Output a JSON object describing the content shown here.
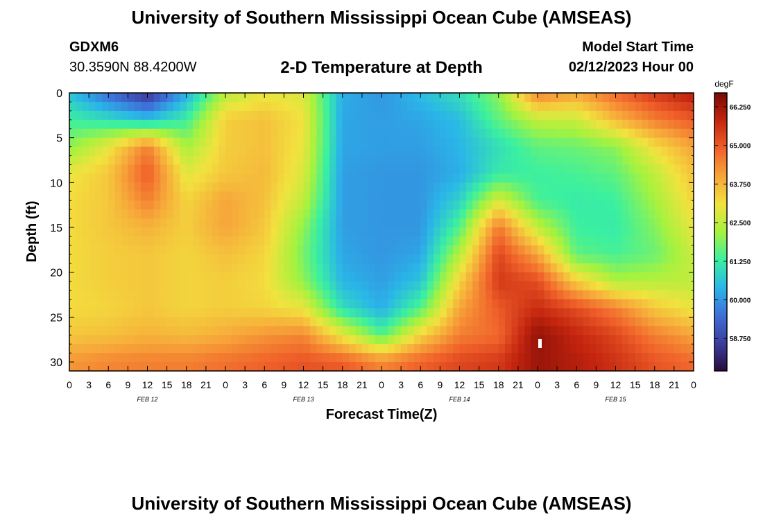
{
  "header": {
    "title": "University of Southern Mississippi Ocean Cube (AMSEAS)",
    "station_id": "GDXM6",
    "station_coords": "30.3590N  88.4200W",
    "plot_title": "2-D Temperature at Depth",
    "model_start_label": "Model Start Time",
    "model_start_value": "02/12/2023 Hour 00"
  },
  "footer": {
    "title": "University of Southern Mississippi Ocean Cube (AMSEAS)"
  },
  "chart_data": {
    "type": "heatmap",
    "title": "2-D Temperature at Depth",
    "xlabel": "Forecast Time(Z)",
    "ylabel": "Depth (ft)",
    "xlim": [
      0,
      96
    ],
    "ylim": [
      0,
      31
    ],
    "x_ticks": [
      "0",
      "3",
      "6",
      "9",
      "12",
      "15",
      "18",
      "21",
      "0",
      "3",
      "6",
      "9",
      "12",
      "15",
      "18",
      "21",
      "0",
      "3",
      "6",
      "9",
      "12",
      "15",
      "18",
      "21",
      "0",
      "3",
      "6",
      "9",
      "12",
      "15",
      "18",
      "21",
      "0"
    ],
    "y_ticks": [
      "0",
      "5",
      "10",
      "15",
      "20",
      "25",
      "30"
    ],
    "date_labels": [
      {
        "label": "FEB 12",
        "hour": 12
      },
      {
        "label": "FEB 13",
        "hour": 36
      },
      {
        "label": "FEB 14",
        "hour": 60
      },
      {
        "label": "FEB 15",
        "hour": 84
      }
    ],
    "colorbar": {
      "unit": "degF",
      "min": 57.7,
      "max": 66.7,
      "ticks": [
        "66.250",
        "65.000",
        "63.750",
        "62.500",
        "61.250",
        "60.000",
        "58.750"
      ],
      "colormap": [
        "#2a0a3e",
        "#3b3f9e",
        "#3e6fd8",
        "#2ab6e8",
        "#3bf0a0",
        "#a6f23e",
        "#f2e23e",
        "#f7a53a",
        "#f0612a",
        "#c4250f",
        "#7a0a04"
      ]
    },
    "depths_ft": [
      0,
      3,
      6,
      9,
      12,
      15,
      18,
      21,
      24,
      27,
      30
    ],
    "hours": [
      0,
      6,
      12,
      18,
      24,
      30,
      36,
      42,
      48,
      54,
      60,
      66,
      72,
      78,
      84,
      90,
      96
    ],
    "temperature_degF": [
      [
        60.6,
        59.4,
        58.3,
        60.3,
        62.4,
        63.0,
        62.8,
        60.3,
        60.0,
        60.5,
        61.0,
        62.0,
        64.5,
        64.0,
        64.8,
        65.5,
        66.0
      ],
      [
        61.3,
        61.0,
        60.6,
        61.3,
        63.4,
        63.6,
        63.1,
        60.2,
        60.1,
        60.2,
        60.5,
        61.6,
        62.5,
        62.6,
        63.7,
        64.5,
        65.0
      ],
      [
        62.0,
        63.0,
        64.5,
        62.2,
        63.4,
        63.6,
        63.0,
        60.2,
        60.1,
        60.1,
        60.4,
        61.0,
        61.6,
        61.7,
        62.0,
        63.2,
        64.0
      ],
      [
        63.0,
        63.5,
        65.0,
        62.9,
        63.5,
        63.7,
        62.8,
        60.1,
        60.0,
        60.0,
        60.3,
        61.2,
        61.3,
        61.4,
        61.6,
        62.5,
        63.6
      ],
      [
        63.2,
        63.5,
        64.5,
        63.3,
        64.0,
        63.6,
        62.5,
        60.1,
        60.0,
        60.0,
        60.8,
        62.8,
        61.4,
        61.2,
        61.3,
        62.2,
        63.3
      ],
      [
        63.2,
        63.5,
        63.8,
        63.4,
        64.0,
        63.5,
        62.0,
        60.1,
        60.0,
        60.0,
        61.5,
        64.6,
        62.5,
        61.3,
        61.2,
        61.9,
        63.0
      ],
      [
        63.2,
        63.4,
        63.5,
        63.3,
        63.6,
        63.3,
        61.8,
        60.2,
        60.0,
        60.2,
        62.4,
        65.3,
        64.0,
        61.6,
        61.4,
        61.7,
        62.6
      ],
      [
        63.2,
        63.4,
        63.5,
        63.3,
        63.4,
        63.2,
        62.0,
        60.4,
        60.1,
        60.6,
        63.3,
        65.5,
        65.2,
        63.4,
        62.3,
        62.4,
        62.5
      ],
      [
        63.2,
        63.3,
        63.5,
        63.3,
        63.4,
        63.3,
        63.0,
        61.0,
        60.3,
        61.5,
        64.0,
        65.0,
        65.7,
        65.2,
        64.5,
        63.5,
        63.0
      ],
      [
        63.5,
        63.6,
        63.8,
        63.7,
        63.9,
        64.2,
        64.4,
        63.0,
        61.5,
        63.3,
        64.5,
        64.8,
        66.4,
        65.8,
        65.3,
        64.5,
        64.0
      ],
      [
        64.2,
        64.4,
        64.5,
        64.5,
        64.7,
        64.9,
        65.1,
        65.0,
        64.4,
        64.9,
        65.3,
        65.5,
        66.3,
        66.0,
        65.6,
        65.1,
        64.8
      ]
    ]
  }
}
